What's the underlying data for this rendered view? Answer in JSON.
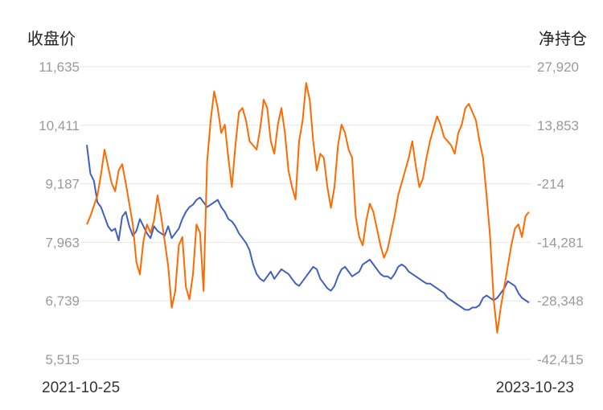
{
  "chart_data": {
    "type": "line",
    "left_axis_title": "收盘价",
    "right_axis_title": "净持仓",
    "left_ticks": [
      "11,635",
      "10,411",
      "9,187",
      "7,963",
      "6,739",
      "5,515"
    ],
    "right_ticks": [
      "27,920",
      "13,853",
      "-214",
      "-14,281",
      "-28,348",
      "-42,415"
    ],
    "ylim_left": [
      5515,
      11635
    ],
    "ylim_right": [
      -42415,
      27920
    ],
    "x_labels": [
      "2021-10-25",
      "2023-10-23"
    ],
    "grid": true,
    "colors": {
      "close": "#4060c0",
      "net_position": "#ff6a00"
    },
    "series": [
      {
        "key": "close",
        "axis": "left",
        "values": [
          10000,
          9400,
          9250,
          8800,
          8700,
          8500,
          8300,
          8200,
          8250,
          8000,
          8500,
          8600,
          8300,
          8100,
          8200,
          8450,
          8300,
          8150,
          8050,
          8300,
          8200,
          8150,
          8100,
          8300,
          8050,
          8150,
          8250,
          8450,
          8600,
          8700,
          8750,
          8850,
          8900,
          8800,
          8700,
          8750,
          8800,
          8850,
          8700,
          8600,
          8450,
          8400,
          8300,
          8150,
          8050,
          7950,
          7800,
          7500,
          7300,
          7200,
          7150,
          7250,
          7350,
          7200,
          7300,
          7400,
          7350,
          7300,
          7200,
          7100,
          7050,
          7150,
          7250,
          7350,
          7450,
          7400,
          7200,
          7100,
          7000,
          6950,
          7050,
          7250,
          7400,
          7450,
          7350,
          7250,
          7300,
          7350,
          7500,
          7550,
          7600,
          7500,
          7400,
          7300,
          7250,
          7250,
          7200,
          7300,
          7450,
          7500,
          7450,
          7350,
          7300,
          7250,
          7200,
          7150,
          7100,
          7100,
          7050,
          7000,
          6950,
          6900,
          6800,
          6750,
          6700,
          6650,
          6600,
          6550,
          6550,
          6600,
          6600,
          6650,
          6800,
          6850,
          6800,
          6750,
          6800,
          6900,
          7000,
          7150,
          7100,
          7050,
          6900,
          6800,
          6750,
          6700
        ]
      },
      {
        "key": "net_position",
        "axis": "right",
        "values": [
          -10000,
          -8000,
          -5500,
          -3000,
          2000,
          8000,
          4000,
          0,
          -2000,
          3000,
          4500,
          0,
          -5000,
          -10000,
          -19000,
          -22000,
          -14000,
          -10000,
          -12000,
          -9000,
          -3000,
          -8000,
          -14000,
          -20000,
          -30000,
          -26000,
          -15000,
          -13000,
          -25000,
          -28000,
          -22000,
          -10000,
          -12000,
          -26000,
          5000,
          15000,
          22000,
          18000,
          12000,
          14000,
          6000,
          -1000,
          9000,
          17000,
          18000,
          15000,
          10000,
          9000,
          8000,
          13000,
          20000,
          18000,
          10000,
          7000,
          14000,
          18000,
          12000,
          3000,
          -1000,
          -4000,
          10000,
          15000,
          24000,
          20000,
          10000,
          3000,
          7000,
          6000,
          -1000,
          -6000,
          -1000,
          9000,
          14000,
          12000,
          8000,
          6000,
          -8000,
          -13000,
          -15000,
          -9000,
          -5000,
          -7000,
          -11000,
          -15000,
          -18000,
          -16000,
          -12000,
          -8000,
          -3000,
          0,
          3000,
          6000,
          10000,
          4000,
          -1000,
          1000,
          6000,
          10000,
          13000,
          16000,
          14000,
          11000,
          10000,
          9000,
          7000,
          12000,
          14000,
          18000,
          19000,
          17000,
          15000,
          10000,
          6000,
          -3000,
          -13000,
          -28000,
          -36000,
          -30000,
          -25000,
          -20000,
          -15000,
          -11000,
          -10000,
          -13000,
          -8000,
          -7000
        ]
      }
    ]
  }
}
